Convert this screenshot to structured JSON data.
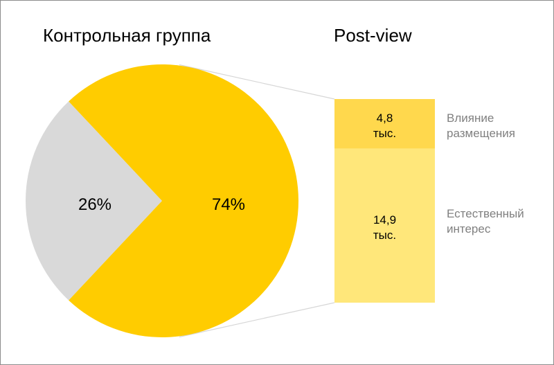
{
  "colors": {
    "pie_main": "#FFCC00",
    "pie_rest": "#D9D9D9",
    "bar_top": "#FFD84D",
    "bar_bottom": "#FFE77A",
    "connector": "#D6D6D6",
    "side_label": "#7F7F7F"
  },
  "chart_data": [
    {
      "type": "pie",
      "title": "Контрольная группа",
      "slices": [
        {
          "label": "74%",
          "value": 74
        },
        {
          "label": "26%",
          "value": 26
        }
      ]
    },
    {
      "type": "bar",
      "title": "Post-view",
      "stacked": true,
      "segments": [
        {
          "value_label": [
            "4,8",
            "тыс."
          ],
          "value": 4.8,
          "label": [
            "Влияние",
            "размещения"
          ]
        },
        {
          "value_label": [
            "14,9",
            "тыс."
          ],
          "value": 14.9,
          "label": [
            "Естественный",
            "интерес"
          ]
        }
      ]
    }
  ]
}
